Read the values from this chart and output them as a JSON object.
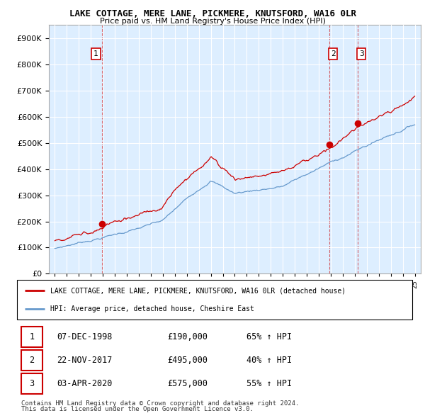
{
  "title": "LAKE COTTAGE, MERE LANE, PICKMERE, KNUTSFORD, WA16 0LR",
  "subtitle": "Price paid vs. HM Land Registry's House Price Index (HPI)",
  "red_label": "LAKE COTTAGE, MERE LANE, PICKMERE, KNUTSFORD, WA16 0LR (detached house)",
  "blue_label": "HPI: Average price, detached house, Cheshire East",
  "footer1": "Contains HM Land Registry data © Crown copyright and database right 2024.",
  "footer2": "This data is licensed under the Open Government Licence v3.0.",
  "transactions": [
    {
      "num": "1",
      "date": "07-DEC-1998",
      "price": "£190,000",
      "hpi": "65% ↑ HPI",
      "year": 1998.92
    },
    {
      "num": "2",
      "date": "22-NOV-2017",
      "price": "£495,000",
      "hpi": "40% ↑ HPI",
      "year": 2017.89
    },
    {
      "num": "3",
      "date": "03-APR-2020",
      "price": "£575,000",
      "hpi": "55% ↑ HPI",
      "year": 2020.25
    }
  ],
  "transaction_values": [
    190000,
    495000,
    575000
  ],
  "transaction_years": [
    1998.92,
    2017.89,
    2020.25
  ],
  "ylim": [
    0,
    950000
  ],
  "yticks": [
    0,
    100000,
    200000,
    300000,
    400000,
    500000,
    600000,
    700000,
    800000,
    900000
  ],
  "xlim_start": 1994.5,
  "xlim_end": 2025.5,
  "red_color": "#cc0000",
  "blue_color": "#6699cc",
  "dashed_color": "#cc0000",
  "plot_bg_color": "#ddeeff",
  "background_color": "#ffffff",
  "grid_color": "#ffffff"
}
